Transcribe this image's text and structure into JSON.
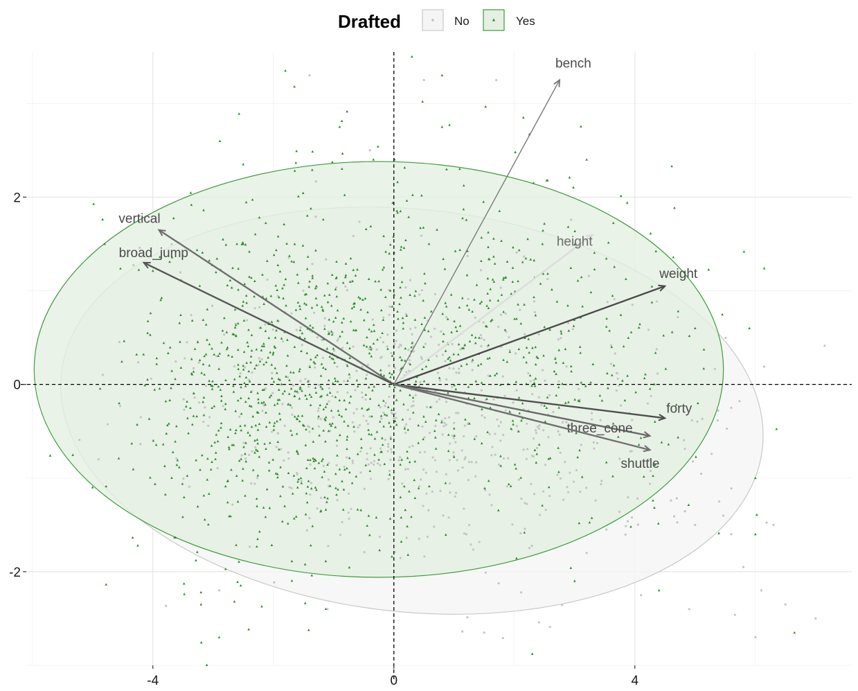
{
  "legend": {
    "title": "Drafted",
    "items": [
      {
        "label": "No",
        "color": "#bdbdbd",
        "fill": "#f5f5f5",
        "marker": "circle"
      },
      {
        "label": "Yes",
        "color": "#2e8b2e",
        "fill": "#e4f0e2",
        "marker": "triangle"
      }
    ]
  },
  "chart_data": {
    "type": "scatter",
    "subtype": "pca-biplot",
    "title": "",
    "xlabel": "",
    "ylabel": "",
    "xlim": [
      -6.1,
      7.6
    ],
    "ylim": [
      -3.0,
      3.55
    ],
    "x_ticks": [
      {
        "value": -4,
        "label": "-4"
      },
      {
        "value": 0,
        "label": "0"
      },
      {
        "value": 4,
        "label": "4"
      }
    ],
    "y_ticks": [
      {
        "value": 2,
        "label": "2"
      },
      {
        "value": 0,
        "label": "0"
      },
      {
        "value": -2,
        "label": "-2"
      }
    ],
    "grid": true,
    "reference_lines": {
      "x": 0,
      "y": 0,
      "style": "dashed"
    },
    "legend_position": "top",
    "groups": [
      {
        "name": "No",
        "color": "#bdbdbd",
        "marker": "circle",
        "ellipse": {
          "cx": 0.3,
          "cy": -0.28,
          "rx": 5.85,
          "ry": 2.15,
          "angle_deg": -6,
          "fill": "#f5f5f5",
          "stroke": "#c8c8c8"
        },
        "approx_count": 650
      },
      {
        "name": "Yes",
        "color": "#2e8b2e",
        "marker": "triangle",
        "ellipse": {
          "cx": -0.25,
          "cy": 0.16,
          "rx": 5.72,
          "ry": 2.22,
          "angle_deg": 0,
          "fill": "#e4f0e2",
          "stroke": "#3c9a3c"
        },
        "approx_count": 1250
      }
    ],
    "loadings": [
      {
        "label": "bench",
        "x": 2.75,
        "y": 3.25,
        "color": "#7a7a7a"
      },
      {
        "label": "height",
        "x": 3.3,
        "y": 1.6,
        "color": "#dcdcdc"
      },
      {
        "label": "weight",
        "x": 4.5,
        "y": 1.05,
        "color": "#4a4a4a"
      },
      {
        "label": "vertical",
        "x": -3.9,
        "y": 1.65,
        "color": "#6e6e6e"
      },
      {
        "label": "broad_jump",
        "x": -4.15,
        "y": 1.3,
        "color": "#555555"
      },
      {
        "label": "forty",
        "x": 4.5,
        "y": -0.36,
        "color": "#4e4e4e"
      },
      {
        "label": "three_cone",
        "x": 4.25,
        "y": -0.55,
        "color": "#6a6a6a"
      },
      {
        "label": "shuttle",
        "x": 4.25,
        "y": -0.7,
        "color": "#707070"
      }
    ],
    "sample_points": {
      "No": [
        [
          -4.9,
          -0.8
        ],
        [
          -4.2,
          -0.35
        ],
        [
          5.6,
          -0.25
        ],
        [
          5.4,
          -1.25
        ],
        [
          5.8,
          -1.95
        ],
        [
          6.1,
          -2.2
        ],
        [
          6.5,
          -2.35
        ],
        [
          7.0,
          -2.5
        ],
        [
          6.3,
          -1.5
        ],
        [
          5.0,
          -1.5
        ],
        [
          3.2,
          -1.8
        ],
        [
          -1.4,
          3.3
        ],
        [
          0.5,
          3.25
        ],
        [
          1.7,
          3.25
        ],
        [
          -0.4,
          2.5
        ],
        [
          -2.9,
          -2.2
        ],
        [
          -1.1,
          -2.4
        ],
        [
          1.5,
          -2.65
        ],
        [
          6.0,
          -2.7
        ],
        [
          4.9,
          -2.4
        ]
      ],
      "Yes": [
        [
          -1.8,
          3.35
        ],
        [
          -1.65,
          3.18
        ],
        [
          0.3,
          3.5
        ],
        [
          0.8,
          3.3
        ],
        [
          2.15,
          2.85
        ],
        [
          0.8,
          2.75
        ],
        [
          2.25,
          2.67
        ],
        [
          3.2,
          2.4
        ],
        [
          -0.9,
          2.75
        ],
        [
          -2.5,
          2.35
        ],
        [
          -4.25,
          -1.72
        ],
        [
          -3.2,
          -2.35
        ],
        [
          -2.9,
          -2.7
        ],
        [
          6.0,
          -1.0
        ],
        [
          5.0,
          0.6
        ],
        [
          5.9,
          0.6
        ],
        [
          6.0,
          -1.6
        ],
        [
          6.65,
          -2.65
        ],
        [
          4.4,
          -2.2
        ],
        [
          3.0,
          -2.1
        ],
        [
          -5.0,
          -1.1
        ],
        [
          -4.8,
          1.5
        ]
      ]
    }
  }
}
